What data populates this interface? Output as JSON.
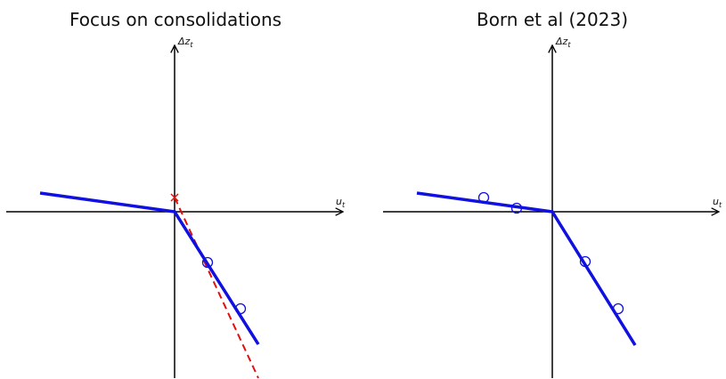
{
  "panels": [
    {
      "title": "Focus on consolidations",
      "y_label": {
        "main": "Δz",
        "sub": "t"
      },
      "x_label": {
        "main": "u",
        "sub": "t"
      }
    },
    {
      "title": "Born et al (2023)",
      "y_label": {
        "main": "Δz",
        "sub": "t"
      },
      "x_label": {
        "main": "u",
        "sub": "t"
      }
    }
  ]
}
